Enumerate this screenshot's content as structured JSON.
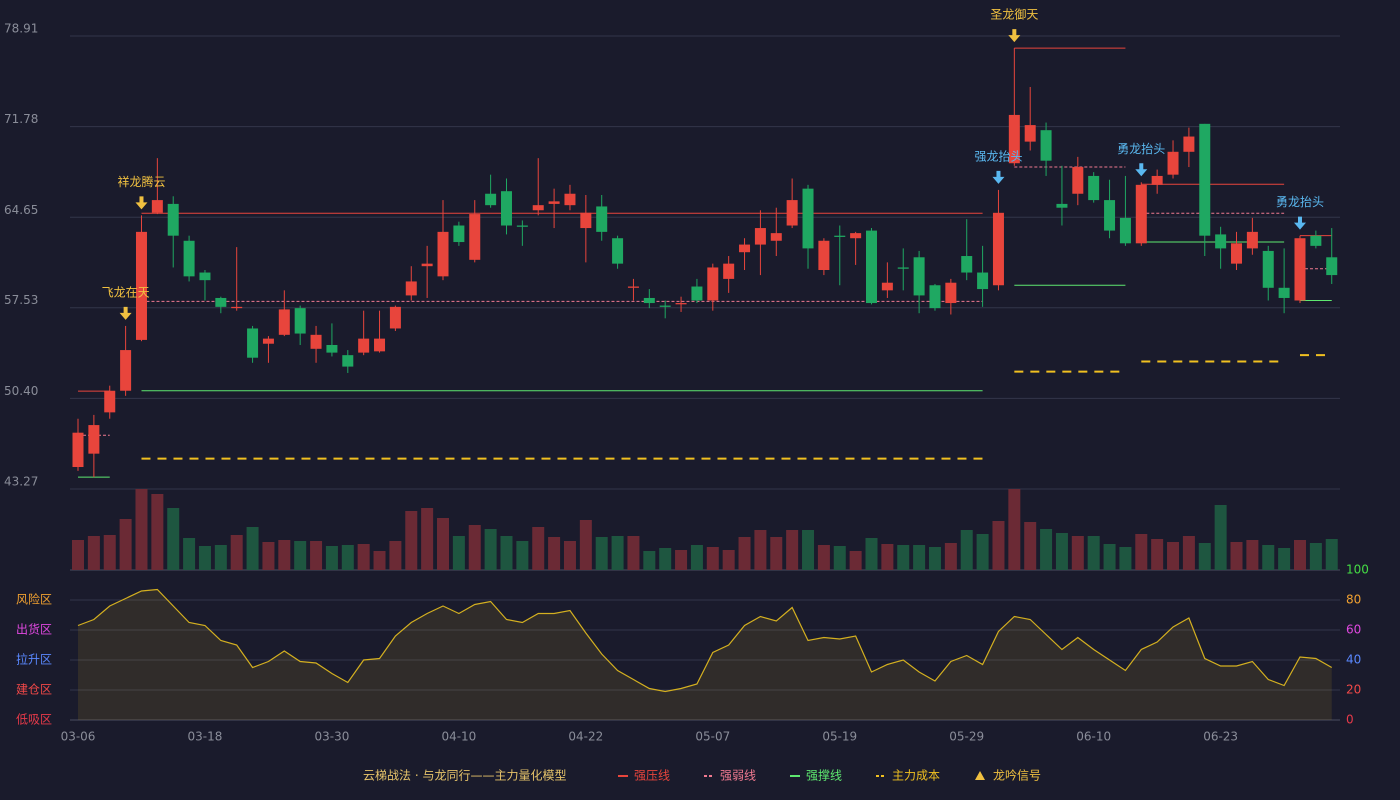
{
  "chart_data": {
    "type": "candlestick",
    "categories": [
      "03-06",
      null,
      null,
      null,
      null,
      null,
      null,
      null,
      "03-18",
      null,
      null,
      null,
      null,
      null,
      null,
      null,
      "03-30",
      null,
      null,
      null,
      null,
      null,
      null,
      null,
      "04-10",
      null,
      null,
      null,
      null,
      null,
      null,
      null,
      "04-22",
      null,
      null,
      null,
      null,
      null,
      null,
      null,
      "05-07",
      null,
      null,
      null,
      null,
      null,
      null,
      null,
      "05-19",
      null,
      null,
      null,
      null,
      null,
      null,
      null,
      "05-29",
      null,
      null,
      null,
      null,
      null,
      null,
      null,
      "06-10",
      null,
      null,
      null,
      null,
      null,
      null,
      null,
      "06-23",
      null,
      null,
      null,
      null,
      null,
      null,
      null
    ],
    "open": [
      45.0,
      46.05,
      49.3,
      51.0,
      55.0,
      65.0,
      65.7,
      62.8,
      60.3,
      58.3,
      57.5,
      55.9,
      54.7,
      55.4,
      57.5,
      54.3,
      54.6,
      53.8,
      54.0,
      54.1,
      55.9,
      58.5,
      60.8,
      60.0,
      64.0,
      61.3,
      66.5,
      66.7,
      64.0,
      65.2,
      65.7,
      65.6,
      63.8,
      65.5,
      63.0,
      59.1,
      58.3,
      57.7,
      57.8,
      59.2,
      58.1,
      59.8,
      61.9,
      62.5,
      62.8,
      64.0,
      66.9,
      60.5,
      63.2,
      63.0,
      63.6,
      58.9,
      60.7,
      61.5,
      59.3,
      57.9,
      61.6,
      60.3,
      59.3,
      68.9,
      70.6,
      71.5,
      65.7,
      66.5,
      67.9,
      66.0,
      64.6,
      62.6,
      67.2,
      68.0,
      69.8,
      72.0,
      63.3,
      61.0,
      62.2,
      62.0,
      59.1,
      58.1,
      63.2,
      61.5
    ],
    "high": [
      48.8,
      49.1,
      51.4,
      56.1,
      64.8,
      69.3,
      66.3,
      63.2,
      60.5,
      58.4,
      62.3,
      56.1,
      55.3,
      58.9,
      57.7,
      56.1,
      56.3,
      54.2,
      57.3,
      57.3,
      57.7,
      60.8,
      62.4,
      66.0,
      64.3,
      66.0,
      68.0,
      67.7,
      64.4,
      69.3,
      66.9,
      67.2,
      66.4,
      66.4,
      63.2,
      59.8,
      59.0,
      58.1,
      58.4,
      59.8,
      61.0,
      61.6,
      63.0,
      65.2,
      65.4,
      67.7,
      67.2,
      63.0,
      64.0,
      63.5,
      63.8,
      61.1,
      62.2,
      62.0,
      59.4,
      59.8,
      64.5,
      62.4,
      66.8,
      77.96,
      74.9,
      72.1,
      68.7,
      69.4,
      68.2,
      67.6,
      67.9,
      67.4,
      68.4,
      70.7,
      71.7,
      72.0,
      63.9,
      63.5,
      64.6,
      62.4,
      62.2,
      63.2,
      63.6,
      63.8
    ],
    "low": [
      44.7,
      44.2,
      48.8,
      50.6,
      54.9,
      64.9,
      60.7,
      59.6,
      58.1,
      57.1,
      57.3,
      53.2,
      53.2,
      55.3,
      54.6,
      53.2,
      53.7,
      52.4,
      53.8,
      54.0,
      55.7,
      58.1,
      58.3,
      59.7,
      62.4,
      61.1,
      65.4,
      63.3,
      62.4,
      64.8,
      63.8,
      65.2,
      61.1,
      62.8,
      60.6,
      58.1,
      57.5,
      56.7,
      57.2,
      57.9,
      57.3,
      58.7,
      60.5,
      60.1,
      61.6,
      63.8,
      60.6,
      60.1,
      59.3,
      60.9,
      57.8,
      58.3,
      58.9,
      57.1,
      57.3,
      57.0,
      59.7,
      57.6,
      58.9,
      68.7,
      69.9,
      67.9,
      64.0,
      65.6,
      65.8,
      63.0,
      62.4,
      62.4,
      66.5,
      67.7,
      68.6,
      61.6,
      60.6,
      60.5,
      61.7,
      58.1,
      57.1,
      57.9,
      62.2,
      59.4
    ],
    "close": [
      47.7,
      48.3,
      51.0,
      54.2,
      63.5,
      66.0,
      63.2,
      60.0,
      59.7,
      57.6,
      57.6,
      53.6,
      55.1,
      57.4,
      55.5,
      55.4,
      54.0,
      52.9,
      55.1,
      55.1,
      57.6,
      59.6,
      61.0,
      63.5,
      62.7,
      64.9,
      65.6,
      64.0,
      63.9,
      65.6,
      65.9,
      66.5,
      65.0,
      63.5,
      61.0,
      59.2,
      57.9,
      57.6,
      57.9,
      58.1,
      60.7,
      61.0,
      62.5,
      63.8,
      63.4,
      66.0,
      62.2,
      62.8,
      63.1,
      63.4,
      57.9,
      59.5,
      60.6,
      58.5,
      57.5,
      59.5,
      60.3,
      59.0,
      65.0,
      72.7,
      71.9,
      69.1,
      65.4,
      68.6,
      66.0,
      63.6,
      62.6,
      67.2,
      67.9,
      69.8,
      71.0,
      63.2,
      62.2,
      62.6,
      63.5,
      59.1,
      58.3,
      63.0,
      62.4,
      60.1
    ],
    "volume": [
      30,
      34,
      35,
      51,
      81,
      76,
      62,
      32,
      24,
      25,
      35,
      43,
      28,
      30,
      29,
      29,
      24,
      25,
      26,
      19,
      29,
      59,
      62,
      52,
      34,
      45,
      41,
      34,
      29,
      43,
      33,
      29,
      50,
      33,
      34,
      34,
      19,
      22,
      20,
      25,
      23,
      20,
      33,
      40,
      33,
      40,
      40,
      25,
      24,
      19,
      32,
      26,
      25,
      25,
      23,
      27,
      40,
      36,
      49,
      81,
      48,
      41,
      37,
      34,
      34,
      26,
      23,
      36,
      31,
      28,
      34,
      27,
      65,
      28,
      30,
      25,
      22,
      30,
      27,
      31
    ],
    "up_color": "#e8453c",
    "down_color": "#1fa862",
    "volume_up_color": "#6b2a35",
    "volume_down_color": "#1e5640",
    "ylim": [
      43.27,
      78.91
    ],
    "yticks": [
      43.27,
      {
        "value": 50.4,
        "label": "50.40"
      },
      57.53,
      64.65,
      71.78,
      78.91
    ],
    "grid": true,
    "signals": [
      null,
      null,
      null,
      {
        "label": "飞龙在天",
        "color": "#f0c040"
      },
      {
        "label": "祥龙腾云",
        "color": "#f0c040"
      },
      null,
      null,
      null,
      null,
      null,
      null,
      null,
      null,
      null,
      null,
      null,
      null,
      null,
      null,
      null,
      null,
      null,
      null,
      null,
      null,
      null,
      null,
      null,
      null,
      null,
      null,
      null,
      null,
      null,
      null,
      null,
      null,
      null,
      null,
      null,
      null,
      null,
      null,
      null,
      null,
      null,
      null,
      null,
      null,
      null,
      null,
      null,
      null,
      null,
      null,
      null,
      null,
      null,
      {
        "label": "强龙抬头",
        "color": "#5ab8f0"
      },
      {
        "label": "圣龙御天",
        "color": "#f0c040"
      },
      null,
      null,
      null,
      null,
      null,
      null,
      null,
      {
        "label": "勇龙抬头",
        "color": "#5ab8f0"
      },
      null,
      null,
      null,
      null,
      null,
      null,
      null,
      null,
      null,
      {
        "label": "勇龙抬头",
        "color": "#5ab8f0"
      },
      null,
      null
    ],
    "levels": [
      {
        "name": "强压线",
        "color": "#e8453c",
        "dash": false,
        "values": [
          50.97,
          50.97,
          50.97,
          null,
          64.96,
          64.96,
          64.96,
          64.96,
          64.96,
          64.96,
          64.96,
          64.96,
          64.96,
          64.96,
          64.96,
          64.96,
          64.96,
          64.96,
          64.96,
          64.96,
          64.96,
          64.96,
          64.96,
          64.96,
          64.96,
          64.96,
          64.96,
          64.96,
          64.96,
          64.96,
          64.96,
          64.96,
          64.96,
          64.96,
          64.96,
          64.96,
          64.96,
          64.96,
          64.96,
          64.96,
          64.96,
          64.96,
          64.96,
          64.96,
          64.96,
          64.96,
          64.96,
          64.96,
          64.96,
          64.96,
          64.96,
          64.96,
          64.96,
          64.96,
          64.96,
          64.96,
          64.96,
          64.96,
          null,
          77.96,
          77.96,
          77.96,
          77.96,
          77.96,
          77.96,
          77.96,
          77.96,
          67.25,
          67.25,
          67.25,
          67.25,
          67.25,
          67.25,
          67.25,
          67.25,
          67.25,
          67.25,
          63.2,
          63.2,
          63.2
        ]
      },
      {
        "name": "强弱线",
        "color": "#f07a90",
        "dash": true,
        "values": [
          47.5,
          47.5,
          47.5,
          null,
          58.03,
          58.03,
          58.03,
          58.03,
          58.03,
          58.03,
          58.03,
          58.03,
          58.03,
          58.03,
          58.03,
          58.03,
          58.03,
          58.03,
          58.03,
          58.03,
          58.03,
          58.03,
          58.03,
          58.03,
          58.03,
          58.03,
          58.03,
          58.03,
          58.03,
          58.03,
          58.03,
          58.03,
          58.03,
          58.03,
          58.03,
          58.03,
          58.03,
          58.03,
          58.03,
          58.03,
          58.03,
          58.03,
          58.03,
          58.03,
          58.03,
          58.03,
          58.03,
          58.03,
          58.03,
          58.03,
          58.03,
          58.03,
          58.03,
          58.03,
          58.03,
          58.03,
          58.03,
          58.03,
          null,
          68.6,
          68.6,
          68.6,
          68.6,
          68.6,
          68.6,
          68.6,
          68.6,
          64.96,
          64.96,
          64.96,
          64.96,
          64.96,
          64.96,
          64.96,
          64.96,
          64.96,
          64.96,
          60.6,
          60.6,
          60.6
        ]
      },
      {
        "name": "强撑线",
        "color": "#5ee870",
        "dash": false,
        "values": [
          44.2,
          44.2,
          44.2,
          null,
          51.0,
          51.0,
          51.0,
          51.0,
          51.0,
          51.0,
          51.0,
          51.0,
          51.0,
          51.0,
          51.0,
          51.0,
          51.0,
          51.0,
          51.0,
          51.0,
          51.0,
          51.0,
          51.0,
          51.0,
          51.0,
          51.0,
          51.0,
          51.0,
          51.0,
          51.0,
          51.0,
          51.0,
          51.0,
          51.0,
          51.0,
          51.0,
          51.0,
          51.0,
          51.0,
          51.0,
          51.0,
          51.0,
          51.0,
          51.0,
          51.0,
          51.0,
          51.0,
          51.0,
          51.0,
          51.0,
          51.0,
          51.0,
          51.0,
          51.0,
          51.0,
          51.0,
          51.0,
          51.0,
          null,
          59.3,
          59.3,
          59.3,
          59.3,
          59.3,
          59.3,
          59.3,
          59.3,
          62.7,
          62.7,
          62.7,
          62.7,
          62.7,
          62.7,
          62.7,
          62.7,
          62.7,
          62.7,
          58.1,
          58.1,
          58.1
        ]
      },
      {
        "name": "主力成本",
        "color": "#f0c020",
        "dash": true,
        "values": [
          null,
          null,
          null,
          null,
          45.66,
          45.66,
          45.66,
          45.66,
          45.66,
          45.66,
          45.66,
          45.66,
          45.66,
          45.66,
          45.66,
          45.66,
          45.66,
          45.66,
          45.66,
          45.66,
          45.66,
          45.66,
          45.66,
          45.66,
          45.66,
          45.66,
          45.66,
          45.66,
          45.66,
          45.66,
          45.66,
          45.66,
          45.66,
          45.66,
          45.66,
          45.66,
          45.66,
          45.66,
          45.66,
          45.66,
          45.66,
          45.66,
          45.66,
          45.66,
          45.66,
          45.66,
          45.66,
          45.66,
          45.66,
          45.66,
          45.66,
          45.66,
          45.66,
          45.66,
          45.66,
          45.66,
          45.66,
          45.66,
          null,
          52.5,
          52.5,
          52.5,
          52.5,
          52.5,
          52.5,
          52.5,
          52.5,
          53.3,
          53.3,
          53.3,
          53.3,
          53.3,
          53.3,
          53.3,
          53.3,
          53.3,
          53.3,
          53.8,
          53.8,
          53.8
        ]
      }
    ],
    "indicator": {
      "values": [
        63,
        67,
        76,
        81,
        86,
        87,
        76,
        65,
        63,
        53,
        50,
        35,
        39,
        46,
        39,
        38,
        31,
        25,
        40,
        41,
        56,
        65,
        71,
        76,
        71,
        77,
        79,
        67,
        65,
        71,
        71,
        73,
        58,
        44,
        33,
        27,
        21,
        19,
        21,
        24,
        45,
        50,
        63,
        69,
        66,
        75,
        53,
        55,
        54,
        56,
        32,
        37,
        40,
        32,
        26,
        39,
        43,
        37,
        59,
        69,
        67,
        57,
        47,
        55,
        47,
        40,
        33,
        47,
        52,
        62,
        68,
        41,
        36,
        36,
        39,
        27,
        23,
        42,
        41,
        35
      ],
      "color": "#d4b020",
      "ylim": [
        0,
        100
      ],
      "yticks": [
        0,
        20,
        40,
        60,
        80,
        100
      ],
      "tick_colors": [
        "#e83a4a",
        "#f04848",
        "#5a88ff",
        "#e048e0",
        "#f0a030",
        "#44dd44"
      ],
      "zone_labels": [
        "低吸区",
        "建仓区",
        "拉升区",
        "出货区",
        "风险区",
        null
      ]
    },
    "legend_title": "云梯战法 · 与龙同行——主力量化模型",
    "signal_legend": {
      "label": "龙吟信号",
      "color": "#f0c040"
    }
  }
}
